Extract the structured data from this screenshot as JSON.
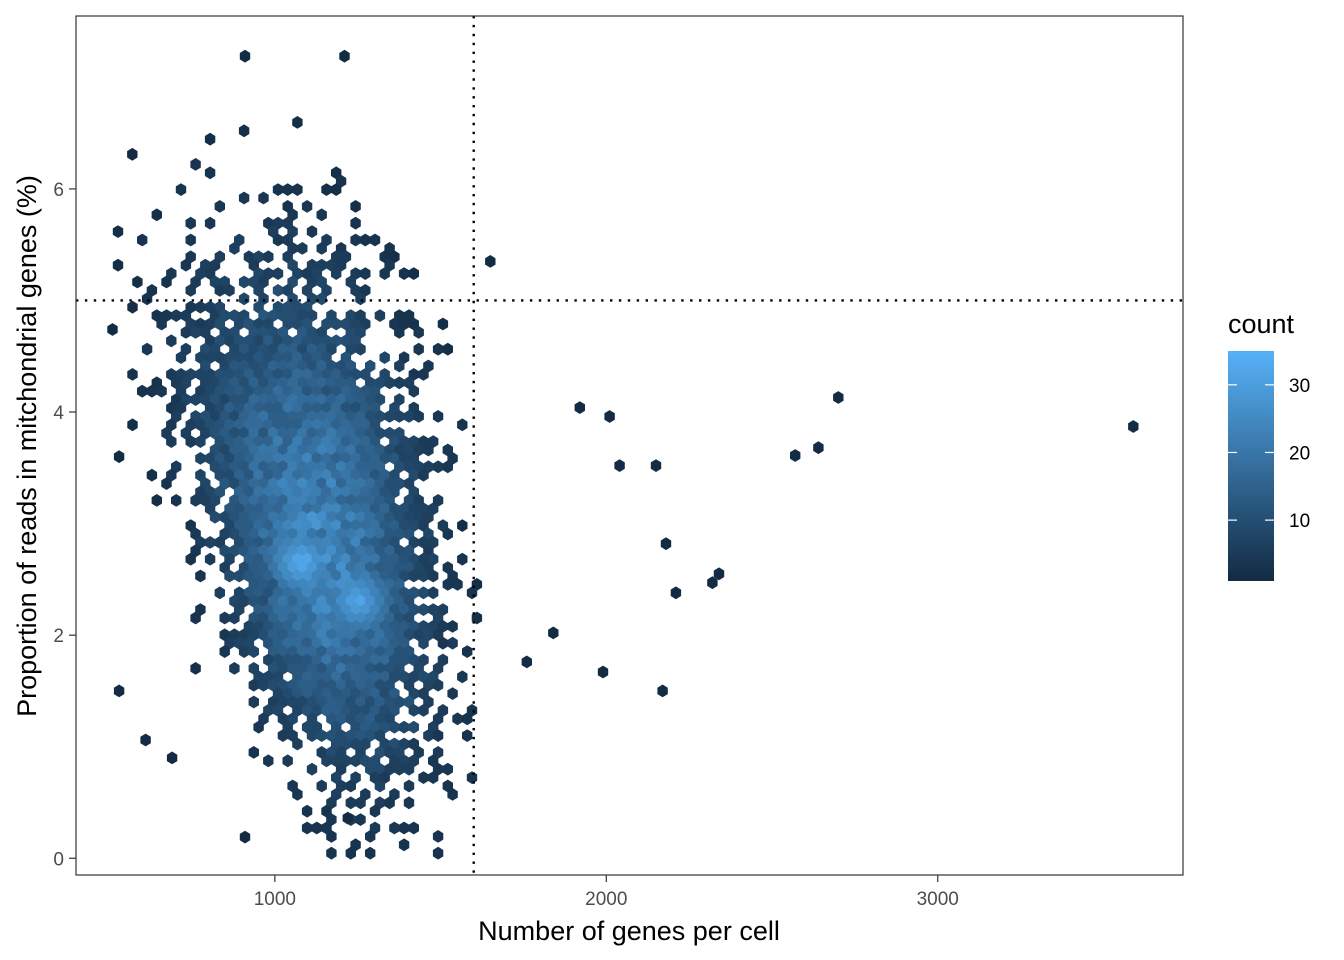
{
  "chart_data": {
    "type": "heatmap",
    "subtype": "hexbin",
    "title": "",
    "xlabel": "Number of genes per cell",
    "ylabel": "Proportion of reads in mitchondrial genes (%)",
    "xlim": [
      400,
      3740
    ],
    "ylim": [
      -0.15,
      7.55
    ],
    "x_ticks": [
      1000,
      2000,
      3000
    ],
    "y_ticks": [
      0,
      2,
      4,
      6
    ],
    "grid": false,
    "reference_lines": [
      {
        "orientation": "vertical",
        "value": 1600,
        "style": "dotted"
      },
      {
        "orientation": "horizontal",
        "value": 5,
        "style": "dotted"
      }
    ],
    "legend": {
      "title": "count",
      "placement": "right",
      "min": 1,
      "max": 35,
      "ticks": [
        10,
        20,
        30
      ],
      "color_low": "#132B43",
      "color_high": "#56B1F7"
    },
    "outlier_points": [
      {
        "x": 3590,
        "y": 3.87,
        "count": 1
      },
      {
        "x": 2700,
        "y": 4.13,
        "count": 1
      },
      {
        "x": 2640,
        "y": 3.68,
        "count": 1
      },
      {
        "x": 2570,
        "y": 3.61,
        "count": 1
      },
      {
        "x": 2340,
        "y": 2.55,
        "count": 1
      },
      {
        "x": 2320,
        "y": 2.47,
        "count": 1
      },
      {
        "x": 2210,
        "y": 2.38,
        "count": 1
      },
      {
        "x": 2170,
        "y": 1.5,
        "count": 1
      },
      {
        "x": 2180,
        "y": 2.82,
        "count": 1
      },
      {
        "x": 2150,
        "y": 3.52,
        "count": 1
      },
      {
        "x": 2040,
        "y": 3.52,
        "count": 1
      },
      {
        "x": 2010,
        "y": 3.96,
        "count": 1
      },
      {
        "x": 1990,
        "y": 1.67,
        "count": 1
      },
      {
        "x": 1920,
        "y": 4.04,
        "count": 1
      },
      {
        "x": 1760,
        "y": 1.76,
        "count": 1
      },
      {
        "x": 1840,
        "y": 2.02,
        "count": 1
      },
      {
        "x": 1650,
        "y": 5.35,
        "count": 1
      },
      {
        "x": 1220,
        "y": 0.36,
        "count": 1
      },
      {
        "x": 910,
        "y": 0.19,
        "count": 1
      },
      {
        "x": 530,
        "y": 1.5,
        "count": 1
      },
      {
        "x": 530,
        "y": 3.6,
        "count": 1
      },
      {
        "x": 690,
        "y": 0.9,
        "count": 1
      },
      {
        "x": 610,
        "y": 1.06,
        "count": 1
      },
      {
        "x": 910,
        "y": 7.19,
        "count": 1
      },
      {
        "x": 1210,
        "y": 7.19,
        "count": 1
      },
      {
        "x": 570,
        "y": 6.31,
        "count": 1
      },
      {
        "x": 510,
        "y": 4.74,
        "count": 1
      }
    ],
    "density_peaks": [
      {
        "x": 1080,
        "y": 2.65,
        "count": 35
      },
      {
        "x": 1250,
        "y": 2.3,
        "count": 33
      }
    ]
  }
}
